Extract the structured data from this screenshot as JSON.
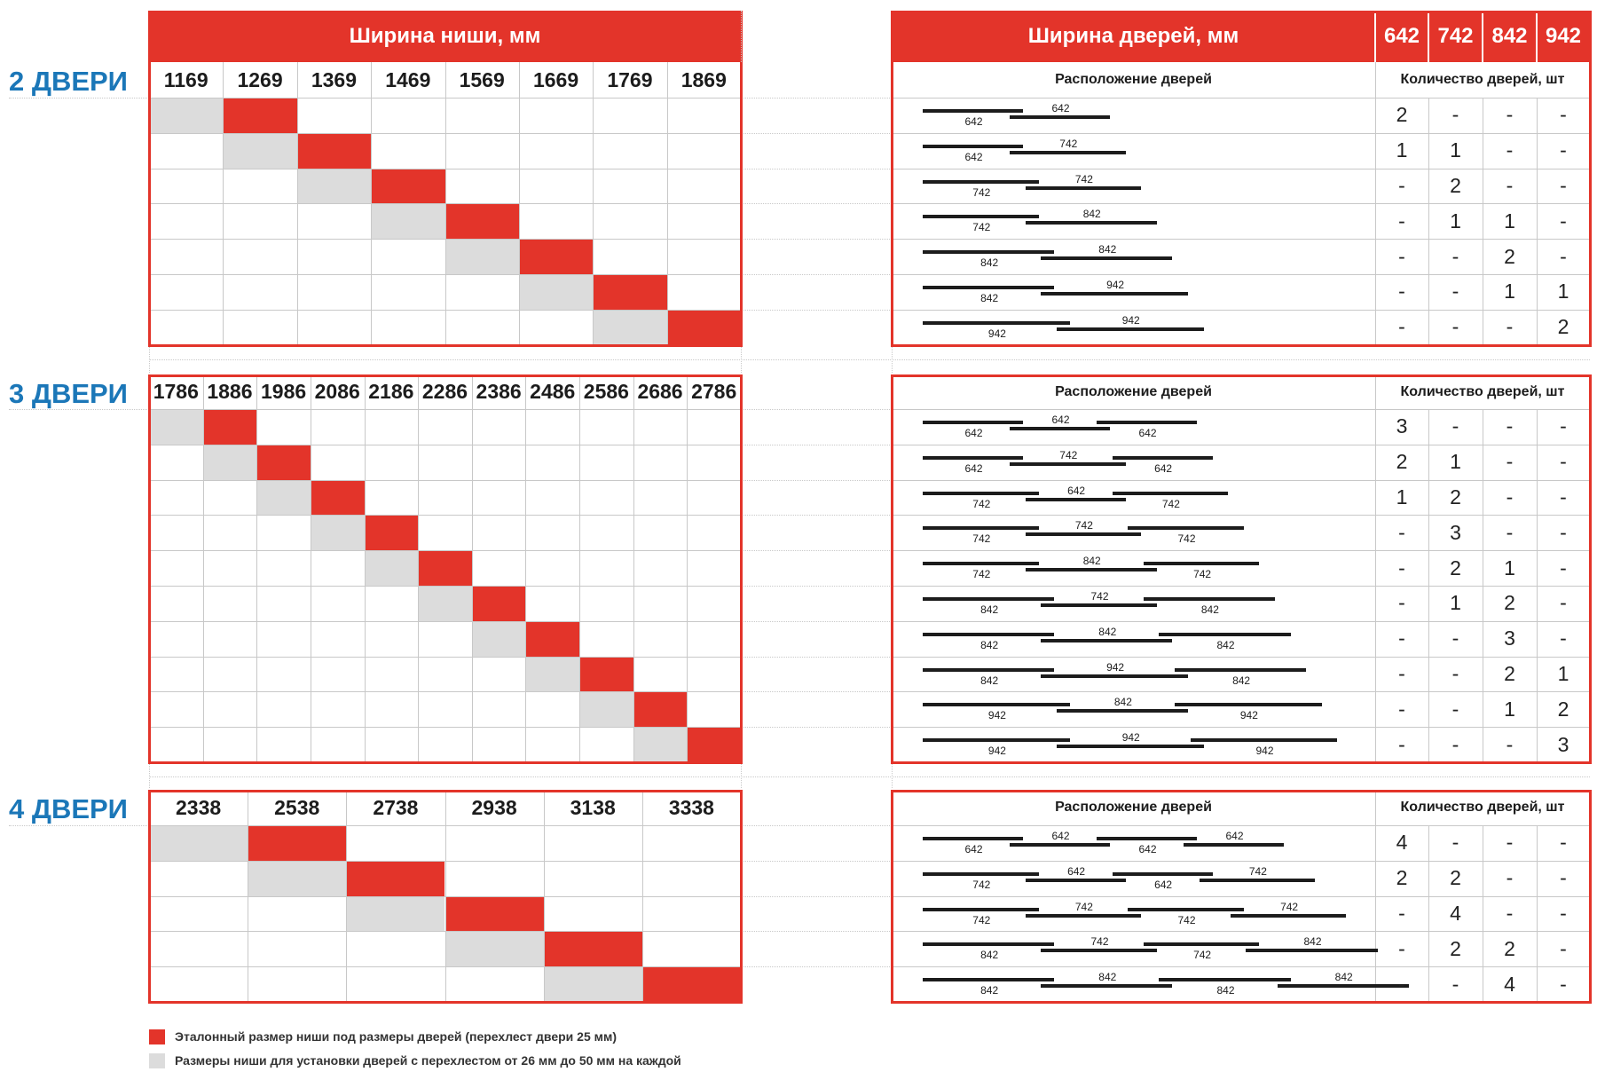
{
  "header": {
    "niche_width": "Ширина ниши, мм",
    "door_width": "Ширина дверей, мм",
    "door_sizes": [
      "642",
      "742",
      "842",
      "942"
    ]
  },
  "labels": {
    "placement": "Расположение дверей",
    "count": "Количество дверей, шт"
  },
  "colors": {
    "accent": "#E3342A",
    "secondary": "#DCDCDC",
    "section_title": "#1B77B8"
  },
  "sections": [
    {
      "title": "2 ДВЕРИ",
      "niche_widths": [
        "1169",
        "1269",
        "1369",
        "1469",
        "1569",
        "1669",
        "1769",
        "1869"
      ],
      "rows": [
        {
          "doors": [
            "642",
            "642"
          ],
          "counts": [
            "2",
            "-",
            "-",
            "-"
          ]
        },
        {
          "doors": [
            "642",
            "742"
          ],
          "counts": [
            "1",
            "1",
            "-",
            "-"
          ]
        },
        {
          "doors": [
            "742",
            "742"
          ],
          "counts": [
            "-",
            "2",
            "-",
            "-"
          ]
        },
        {
          "doors": [
            "742",
            "842"
          ],
          "counts": [
            "-",
            "1",
            "1",
            "-"
          ]
        },
        {
          "doors": [
            "842",
            "842"
          ],
          "counts": [
            "-",
            "-",
            "2",
            "-"
          ]
        },
        {
          "doors": [
            "842",
            "942"
          ],
          "counts": [
            "-",
            "-",
            "1",
            "1"
          ]
        },
        {
          "doors": [
            "942",
            "942"
          ],
          "counts": [
            "-",
            "-",
            "-",
            "2"
          ]
        }
      ]
    },
    {
      "title": "3 ДВЕРИ",
      "niche_widths": [
        "1786",
        "1886",
        "1986",
        "2086",
        "2186",
        "2286",
        "2386",
        "2486",
        "2586",
        "2686",
        "2786"
      ],
      "rows": [
        {
          "doors": [
            "642",
            "642",
            "642"
          ],
          "counts": [
            "3",
            "-",
            "-",
            "-"
          ]
        },
        {
          "doors": [
            "642",
            "742",
            "642"
          ],
          "counts": [
            "2",
            "1",
            "-",
            "-"
          ]
        },
        {
          "doors": [
            "742",
            "642",
            "742"
          ],
          "counts": [
            "1",
            "2",
            "-",
            "-"
          ]
        },
        {
          "doors": [
            "742",
            "742",
            "742"
          ],
          "counts": [
            "-",
            "3",
            "-",
            "-"
          ]
        },
        {
          "doors": [
            "742",
            "842",
            "742"
          ],
          "counts": [
            "-",
            "2",
            "1",
            "-"
          ]
        },
        {
          "doors": [
            "842",
            "742",
            "842"
          ],
          "counts": [
            "-",
            "1",
            "2",
            "-"
          ]
        },
        {
          "doors": [
            "842",
            "842",
            "842"
          ],
          "counts": [
            "-",
            "-",
            "3",
            "-"
          ]
        },
        {
          "doors": [
            "842",
            "942",
            "842"
          ],
          "counts": [
            "-",
            "-",
            "2",
            "1"
          ]
        },
        {
          "doors": [
            "942",
            "842",
            "942"
          ],
          "counts": [
            "-",
            "-",
            "1",
            "2"
          ]
        },
        {
          "doors": [
            "942",
            "942",
            "942"
          ],
          "counts": [
            "-",
            "-",
            "-",
            "3"
          ]
        }
      ]
    },
    {
      "title": "4 ДВЕРИ",
      "niche_widths": [
        "2338",
        "2538",
        "2738",
        "2938",
        "3138",
        "3338"
      ],
      "rows": [
        {
          "doors": [
            "642",
            "642",
            "642",
            "642"
          ],
          "counts": [
            "4",
            "-",
            "-",
            "-"
          ]
        },
        {
          "doors": [
            "742",
            "642",
            "642",
            "742"
          ],
          "counts": [
            "2",
            "2",
            "-",
            "-"
          ]
        },
        {
          "doors": [
            "742",
            "742",
            "742",
            "742"
          ],
          "counts": [
            "-",
            "4",
            "-",
            "-"
          ]
        },
        {
          "doors": [
            "842",
            "742",
            "742",
            "842"
          ],
          "counts": [
            "-",
            "2",
            "2",
            "-"
          ]
        },
        {
          "doors": [
            "842",
            "842",
            "842",
            "842"
          ],
          "counts": [
            "-",
            "-",
            "4",
            "-"
          ]
        }
      ]
    }
  ],
  "legend": [
    {
      "color": "#E3342A",
      "text": "Эталонный размер ниши под размеры дверей (перехлест двери 25 мм)"
    },
    {
      "color": "#DCDCDC",
      "text": "Размеры ниши для установки дверей с перехлестом от 26 мм до 50 мм на каждой"
    }
  ]
}
